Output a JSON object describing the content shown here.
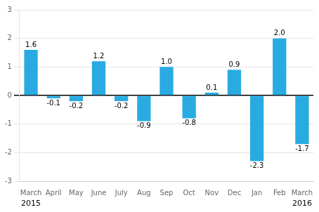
{
  "chart_data": {
    "type": "bar",
    "categories": [
      "March",
      "April",
      "May",
      "June",
      "July",
      "Aug",
      "Sep",
      "Oct",
      "Nov",
      "Dec",
      "Jan",
      "Feb",
      "March"
    ],
    "values": [
      1.6,
      -0.1,
      -0.2,
      1.2,
      -0.2,
      -0.9,
      1.0,
      -0.8,
      0.1,
      0.9,
      -2.3,
      2.0,
      -1.7
    ],
    "value_labels": [
      "1.6",
      "-0.1",
      "-0.2",
      "1.2",
      "-0.2",
      "-0.9",
      "1.0",
      "-0.8",
      "0.1",
      "0.9",
      "-2.3",
      "2.0",
      "-1.7"
    ],
    "color": "#29ABE2",
    "ylim": [
      -3,
      3
    ],
    "yticks": [
      -3,
      -2,
      -1,
      0,
      1,
      2,
      3
    ],
    "grid": true,
    "data_labels": true,
    "annotations": [
      {
        "text": "2015",
        "x": 0
      },
      {
        "text": "2016",
        "x": 12
      }
    ]
  }
}
